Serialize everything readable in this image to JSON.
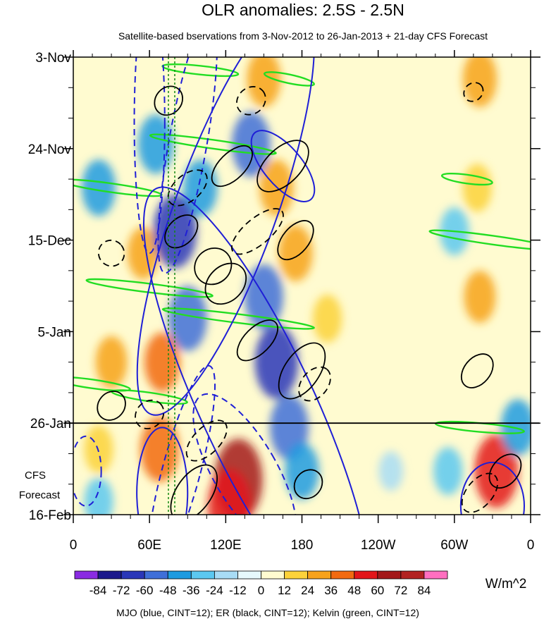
{
  "chart_data": {
    "type": "heatmap",
    "title": "OLR anomalies: 2.5S - 2.5N",
    "subtitle": "Satellite-based bservations from 3-Nov-2012 to 26-Jan-2013 + 21-day CFS Forecast",
    "x_ticks": [
      "0",
      "60E",
      "120E",
      "180",
      "120W",
      "60W",
      "0"
    ],
    "x_tick_values": [
      0,
      60,
      120,
      180,
      240,
      300,
      360
    ],
    "xlim": [
      0,
      360
    ],
    "y_ticks": [
      "3-Nov",
      "24-Nov",
      "15-Dec",
      "5-Jan",
      "26-Jan",
      "16-Feb"
    ],
    "y_tick_days": [
      0,
      21,
      42,
      63,
      84,
      105
    ],
    "ylim": [
      0,
      105
    ],
    "observation_end_label": "26-Jan",
    "observation_end_day": 84,
    "forecast_label_line1": "CFS",
    "forecast_label_line2": "Forecast",
    "colorbar": {
      "labels": [
        "-84",
        "-72",
        "-60",
        "-48",
        "-36",
        "-24",
        "-12",
        "0",
        "12",
        "24",
        "36",
        "48",
        "60",
        "72",
        "84"
      ],
      "colors": [
        "#8a2be2",
        "#1d1a8c",
        "#2a37b8",
        "#3f6fd8",
        "#1e9be0",
        "#5cc8f0",
        "#a8dcf5",
        "#e6f8fc",
        "#fffbd0",
        "#fcd23a",
        "#f7a21b",
        "#f26a10",
        "#e3151a",
        "#a3181a",
        "#b22222",
        "#ff6fc0"
      ],
      "units": "W/m^2"
    },
    "footer": "MJO (blue, CINT=12); ER (black, CINT=12); Kelvin (green, CINT=12)",
    "contour_colors": {
      "mjo": "#1f1fd6",
      "er": "#000000",
      "kelvin": "#22dd22"
    },
    "anomaly_features": [
      {
        "lon": 65,
        "day": 20,
        "value": -40
      },
      {
        "lon": 55,
        "day": 45,
        "value": 30
      },
      {
        "lon": 70,
        "day": 70,
        "value": 40
      },
      {
        "lon": 68,
        "day": 90,
        "value": 48
      },
      {
        "lon": 130,
        "day": 97,
        "value": 72
      },
      {
        "lon": 123,
        "day": 103,
        "value": 60
      },
      {
        "lon": 150,
        "day": 5,
        "value": 36
      },
      {
        "lon": 160,
        "day": 30,
        "value": 36
      },
      {
        "lon": 175,
        "day": 45,
        "value": 36
      },
      {
        "lon": 150,
        "day": 55,
        "value": -48
      },
      {
        "lon": 160,
        "day": 70,
        "value": -60
      },
      {
        "lon": 170,
        "day": 85,
        "value": -48
      },
      {
        "lon": 180,
        "day": 95,
        "value": -36
      },
      {
        "lon": 140,
        "day": 20,
        "value": -48
      },
      {
        "lon": 100,
        "day": 30,
        "value": -36
      },
      {
        "lon": 90,
        "day": 60,
        "value": -48
      },
      {
        "lon": 80,
        "day": 40,
        "value": -60
      },
      {
        "lon": 200,
        "day": 60,
        "value": 24
      },
      {
        "lon": 20,
        "day": 30,
        "value": -36
      },
      {
        "lon": 30,
        "day": 70,
        "value": 30
      },
      {
        "lon": 20,
        "day": 90,
        "value": 24
      },
      {
        "lon": 20,
        "day": 102,
        "value": -24
      },
      {
        "lon": 320,
        "day": 5,
        "value": 36
      },
      {
        "lon": 318,
        "day": 30,
        "value": 24
      },
      {
        "lon": 320,
        "day": 55,
        "value": 30
      },
      {
        "lon": 333,
        "day": 95,
        "value": 60
      },
      {
        "lon": 295,
        "day": 95,
        "value": -24
      },
      {
        "lon": 300,
        "day": 40,
        "value": -24
      },
      {
        "lon": 350,
        "day": 85,
        "value": -36
      },
      {
        "lon": 250,
        "day": 95,
        "value": -12
      }
    ],
    "mjo_contours": [
      {
        "lon": 120,
        "day": 35,
        "dlon": 40,
        "dday": 50,
        "angle": 20,
        "dashed": false
      },
      {
        "lon": 145,
        "day": 80,
        "dlon": 45,
        "dday": 55,
        "angle": -25,
        "dashed": false
      },
      {
        "lon": 165,
        "day": 25,
        "dlon": 15,
        "dday": 10,
        "angle": -40,
        "dashed": false
      },
      {
        "lon": 330,
        "day": 103,
        "dlon": 25,
        "dday": 10,
        "angle": 0,
        "dashed": false
      },
      {
        "lon": 70,
        "day": 100,
        "dlon": 20,
        "dday": 15,
        "angle": 0,
        "dashed": false
      },
      {
        "lon": 90,
        "day": 20,
        "dlon": 15,
        "dday": 30,
        "angle": 10,
        "dashed": true
      },
      {
        "lon": 60,
        "day": 15,
        "dlon": 12,
        "dday": 30,
        "angle": 0,
        "dashed": true
      },
      {
        "lon": 10,
        "day": 95,
        "dlon": 12,
        "dday": 8,
        "angle": 0,
        "dashed": true
      },
      {
        "lon": 135,
        "day": 95,
        "dlon": 25,
        "dday": 20,
        "angle": -30,
        "dashed": true
      },
      {
        "lon": 85,
        "day": 95,
        "dlon": 15,
        "dday": 25,
        "angle": 15,
        "dashed": true
      }
    ],
    "er_contours": [
      {
        "lon": 110,
        "day": 48,
        "dlon": 15,
        "dday": 4,
        "angle": -40,
        "dashed": false
      },
      {
        "lon": 180,
        "day": 72,
        "dlon": 25,
        "dday": 4,
        "angle": -55,
        "dashed": false
      },
      {
        "lon": 165,
        "day": 25,
        "dlon": 25,
        "dday": 4,
        "angle": -45,
        "dashed": false
      },
      {
        "lon": 125,
        "day": 25,
        "dlon": 20,
        "dday": 3,
        "angle": -45,
        "dashed": false
      },
      {
        "lon": 120,
        "day": 52,
        "dlon": 18,
        "dday": 4,
        "angle": -45,
        "dashed": false
      },
      {
        "lon": 175,
        "day": 42,
        "dlon": 18,
        "dday": 3,
        "angle": -50,
        "dashed": false
      },
      {
        "lon": 75,
        "day": 10,
        "dlon": 12,
        "dday": 3,
        "angle": -50,
        "dashed": false
      },
      {
        "lon": 30,
        "day": 80,
        "dlon": 12,
        "dday": 3,
        "angle": -50,
        "dashed": false
      },
      {
        "lon": 95,
        "day": 100,
        "dlon": 25,
        "dday": 4,
        "angle": -55,
        "dashed": false
      },
      {
        "lon": 185,
        "day": 98,
        "dlon": 12,
        "dday": 3,
        "angle": -50,
        "dashed": false
      },
      {
        "lon": 340,
        "day": 95,
        "dlon": 15,
        "dday": 3,
        "angle": -50,
        "dashed": false
      },
      {
        "lon": 318,
        "day": 72,
        "dlon": 15,
        "dday": 3,
        "angle": -50,
        "dashed": false
      },
      {
        "lon": 85,
        "day": 40,
        "dlon": 15,
        "dday": 3,
        "angle": -45,
        "dashed": false
      },
      {
        "lon": 145,
        "day": 65,
        "dlon": 20,
        "dday": 3,
        "angle": -45,
        "dashed": false
      },
      {
        "lon": 90,
        "day": 30,
        "dlon": 18,
        "dday": 3,
        "angle": -40,
        "dashed": true
      },
      {
        "lon": 145,
        "day": 40,
        "dlon": 25,
        "dday": 3,
        "angle": -40,
        "dashed": true
      },
      {
        "lon": 105,
        "day": 88,
        "dlon": 20,
        "dday": 3,
        "angle": -45,
        "dashed": true
      },
      {
        "lon": 140,
        "day": 10,
        "dlon": 12,
        "dday": 3,
        "angle": -40,
        "dashed": true
      },
      {
        "lon": 30,
        "day": 45,
        "dlon": 10,
        "dday": 3,
        "angle": -40,
        "dashed": true
      },
      {
        "lon": 190,
        "day": 75,
        "dlon": 15,
        "dday": 3,
        "angle": -50,
        "dashed": true
      },
      {
        "lon": 320,
        "day": 100,
        "dlon": 18,
        "dday": 3,
        "angle": -50,
        "dashed": true
      },
      {
        "lon": 315,
        "day": 8,
        "dlon": 8,
        "dday": 2,
        "angle": -40,
        "dashed": true
      },
      {
        "lon": 60,
        "day": 82,
        "dlon": 12,
        "dday": 3,
        "angle": -45,
        "dashed": true
      }
    ],
    "kelvin_contours": [
      {
        "lon": 30,
        "day": 30,
        "dlon": 40,
        "dday": 1,
        "angle": 8,
        "dashed": false
      },
      {
        "lon": 60,
        "day": 53,
        "dlon": 50,
        "dday": 1,
        "angle": 7,
        "dashed": false
      },
      {
        "lon": 130,
        "day": 60,
        "dlon": 60,
        "dday": 1,
        "angle": 7,
        "dashed": false
      },
      {
        "lon": 110,
        "day": 20,
        "dlon": 50,
        "dday": 1,
        "angle": 8,
        "dashed": false
      },
      {
        "lon": 170,
        "day": 5,
        "dlon": 20,
        "dday": 1,
        "angle": 12,
        "dashed": false
      },
      {
        "lon": 330,
        "day": 42,
        "dlon": 50,
        "dday": 1,
        "angle": 8,
        "dashed": false
      },
      {
        "lon": 310,
        "day": 28,
        "dlon": 20,
        "dday": 1,
        "angle": 8,
        "dashed": false
      },
      {
        "lon": 60,
        "day": 78,
        "dlon": 30,
        "dday": 1,
        "angle": 8,
        "dashed": false
      },
      {
        "lon": 15,
        "day": 75,
        "dlon": 30,
        "dday": 1,
        "angle": 8,
        "dashed": false
      },
      {
        "lon": 320,
        "day": 85,
        "dlon": 35,
        "dday": 1,
        "angle": 5,
        "dashed": false
      },
      {
        "lon": 100,
        "day": 3,
        "dlon": 30,
        "dday": 1,
        "angle": 6,
        "dashed": false
      }
    ]
  }
}
